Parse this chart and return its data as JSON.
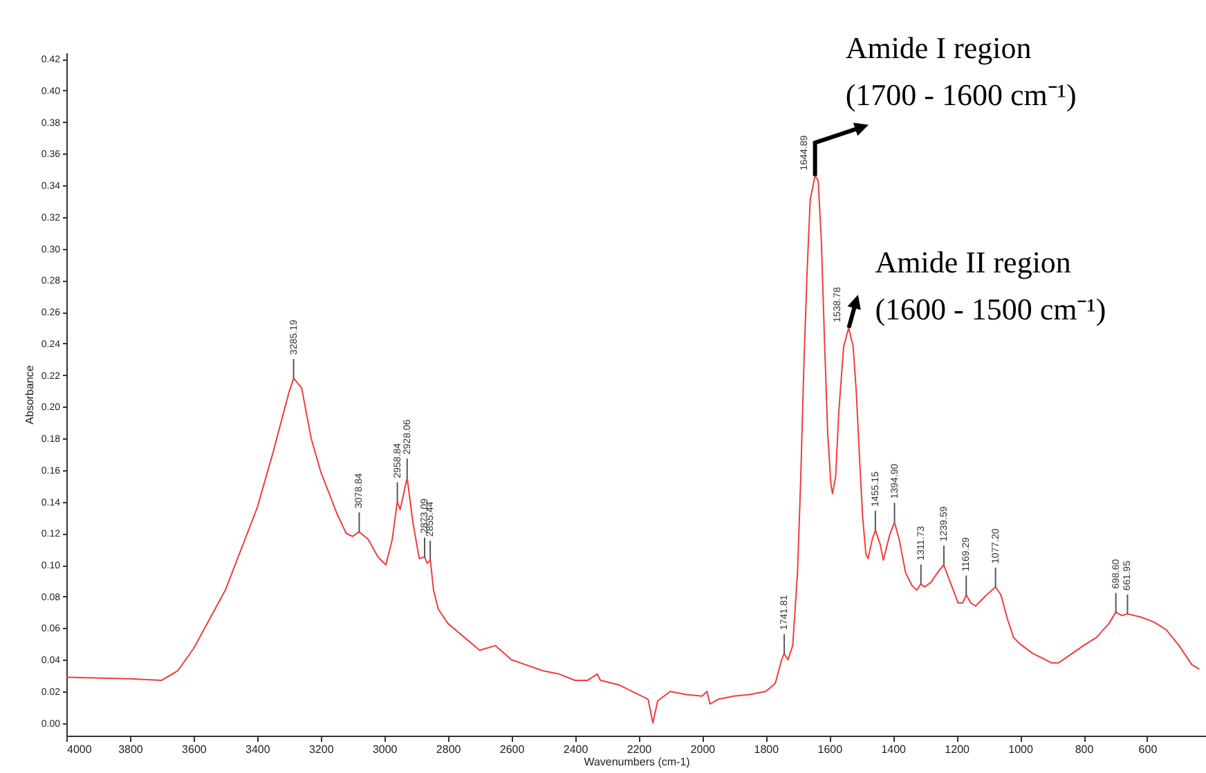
{
  "chart_data": {
    "type": "line",
    "xlabel": "Wavenumbers (cm-1)",
    "ylabel": "Absorbance",
    "xlim": [
      4000,
      415
    ],
    "ylim": [
      -0.008,
      0.424
    ],
    "xticks": [
      4000,
      3800,
      3600,
      3400,
      3200,
      3000,
      2800,
      2600,
      2400,
      2200,
      2000,
      1800,
      1600,
      1400,
      1200,
      1000,
      800,
      600
    ],
    "yticks": [
      {
        "value": 0,
        "label": "0.00"
      },
      {
        "value": 0.02,
        "label": "0.02"
      },
      {
        "value": 0.04,
        "label": "0.04"
      },
      {
        "value": 0.06,
        "label": "0.06"
      },
      {
        "value": 0.08,
        "label": "0.08"
      },
      {
        "value": 0.1,
        "label": "0.10"
      },
      {
        "value": 0.12,
        "label": "0.12"
      },
      {
        "value": 0.14,
        "label": "0.14"
      },
      {
        "value": 0.16,
        "label": "0.16"
      },
      {
        "value": 0.18,
        "label": "0.18"
      },
      {
        "value": 0.2,
        "label": "0.20"
      },
      {
        "value": 0.22,
        "label": "0.22"
      },
      {
        "value": 0.24,
        "label": "0.24"
      },
      {
        "value": 0.26,
        "label": "0.26"
      },
      {
        "value": 0.28,
        "label": "0.28"
      },
      {
        "value": 0.3,
        "label": "0.30"
      },
      {
        "value": 0.32,
        "label": "0.32"
      },
      {
        "value": 0.34,
        "label": "0.34"
      },
      {
        "value": 0.36,
        "label": "0.36"
      },
      {
        "value": 0.38,
        "label": "0.38"
      },
      {
        "value": 0.4,
        "label": "0.40"
      },
      {
        "value": 0.42,
        "label": "0.42"
      }
    ],
    "grid": false,
    "marker": "none",
    "line_style": "solid",
    "series": [
      {
        "color": "#f03c3c",
        "x": [
          4000,
          3800,
          3700,
          3650,
          3600,
          3500,
          3400,
          3350,
          3300,
          3285,
          3260,
          3230,
          3200,
          3150,
          3120,
          3100,
          3079,
          3050,
          3020,
          2995,
          2975,
          2959,
          2950,
          2928,
          2910,
          2890,
          2873,
          2865,
          2855,
          2845,
          2830,
          2800,
          2700,
          2650,
          2600,
          2500,
          2450,
          2400,
          2360,
          2330,
          2320,
          2260,
          2200,
          2170,
          2155,
          2140,
          2100,
          2050,
          2000,
          1985,
          1975,
          1950,
          1900,
          1850,
          1800,
          1770,
          1750,
          1742,
          1730,
          1715,
          1700,
          1690,
          1680,
          1670,
          1660,
          1645,
          1635,
          1625,
          1615,
          1605,
          1595,
          1590,
          1580,
          1570,
          1555,
          1539,
          1525,
          1515,
          1505,
          1495,
          1485,
          1478,
          1465,
          1455,
          1440,
          1430,
          1410,
          1395,
          1380,
          1360,
          1340,
          1325,
          1312,
          1300,
          1280,
          1260,
          1240,
          1225,
          1210,
          1195,
          1180,
          1169,
          1155,
          1140,
          1120,
          1100,
          1077,
          1060,
          1040,
          1020,
          1000,
          960,
          930,
          900,
          880,
          850,
          800,
          760,
          720,
          699,
          680,
          662,
          620,
          580,
          540,
          500,
          460,
          436
        ],
        "values": [
          0.029,
          0.028,
          0.027,
          0.033,
          0.047,
          0.084,
          0.136,
          0.171,
          0.209,
          0.218,
          0.212,
          0.18,
          0.159,
          0.133,
          0.12,
          0.118,
          0.121,
          0.116,
          0.105,
          0.1,
          0.116,
          0.14,
          0.135,
          0.155,
          0.127,
          0.104,
          0.105,
          0.101,
          0.103,
          0.084,
          0.072,
          0.063,
          0.046,
          0.049,
          0.04,
          0.033,
          0.031,
          0.027,
          0.027,
          0.031,
          0.027,
          0.024,
          0.018,
          0.015,
          0.0,
          0.014,
          0.02,
          0.018,
          0.017,
          0.02,
          0.012,
          0.015,
          0.017,
          0.018,
          0.02,
          0.025,
          0.04,
          0.044,
          0.04,
          0.049,
          0.095,
          0.154,
          0.226,
          0.285,
          0.331,
          0.346,
          0.343,
          0.305,
          0.241,
          0.183,
          0.151,
          0.145,
          0.156,
          0.197,
          0.238,
          0.25,
          0.238,
          0.209,
          0.168,
          0.13,
          0.107,
          0.104,
          0.116,
          0.122,
          0.113,
          0.103,
          0.119,
          0.127,
          0.116,
          0.095,
          0.087,
          0.084,
          0.088,
          0.086,
          0.089,
          0.095,
          0.1,
          0.092,
          0.084,
          0.076,
          0.076,
          0.081,
          0.076,
          0.074,
          0.078,
          0.082,
          0.086,
          0.081,
          0.066,
          0.054,
          0.05,
          0.044,
          0.041,
          0.038,
          0.038,
          0.042,
          0.049,
          0.054,
          0.063,
          0.07,
          0.068,
          0.069,
          0.067,
          0.064,
          0.059,
          0.049,
          0.037,
          0.034
        ]
      }
    ],
    "annotations": [
      {
        "text": "3285.19",
        "x": 3285.19,
        "y": 0.218
      },
      {
        "text": "3078.84",
        "x": 3078.84,
        "y": 0.121
      },
      {
        "text": "2958.84",
        "x": 2958.84,
        "y": 0.14
      },
      {
        "text": "2928.06",
        "x": 2928.06,
        "y": 0.155
      },
      {
        "text": "2873.09",
        "x": 2873.09,
        "y": 0.105
      },
      {
        "text": "2855.44",
        "x": 2855.44,
        "y": 0.103
      },
      {
        "text": "1741.81",
        "x": 1741.81,
        "y": 0.044
      },
      {
        "text": "1644.89",
        "x": 1644.89,
        "y": 0.346
      },
      {
        "text": "1538.78",
        "x": 1538.78,
        "y": 0.25
      },
      {
        "text": "1455.15",
        "x": 1455.15,
        "y": 0.122
      },
      {
        "text": "1394.90",
        "x": 1394.9,
        "y": 0.127
      },
      {
        "text": "1311.73",
        "x": 1311.73,
        "y": 0.088
      },
      {
        "text": "1239.59",
        "x": 1239.59,
        "y": 0.1
      },
      {
        "text": "1169.29",
        "x": 1169.29,
        "y": 0.081
      },
      {
        "text": "1077.20",
        "x": 1077.2,
        "y": 0.086
      },
      {
        "text": "698.60",
        "x": 698.6,
        "y": 0.07
      },
      {
        "text": "661.95",
        "x": 661.95,
        "y": 0.069
      },
      {
        "text": "Amide I region\n(1700 - 1600 cm⁻¹)",
        "x": 1644.89,
        "y": 0.346
      },
      {
        "text": "Amide II region\n(1600 - 1500 cm⁻¹)",
        "x": 1538.78,
        "y": 0.25
      }
    ]
  }
}
